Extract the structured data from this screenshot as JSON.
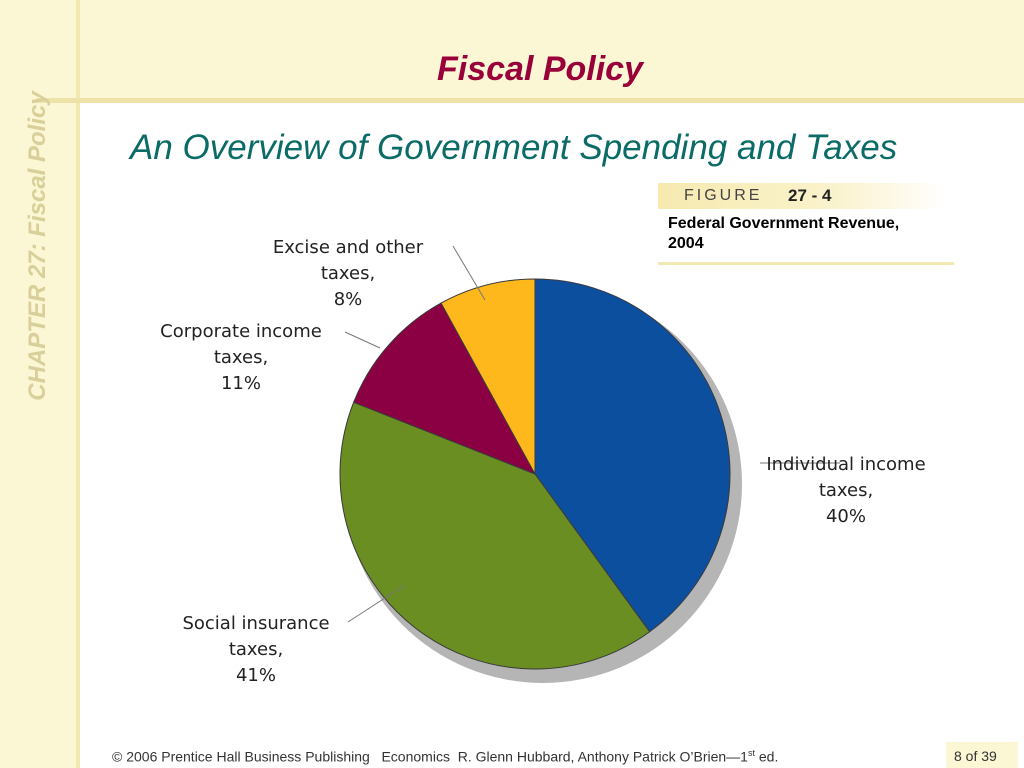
{
  "slide": {
    "title": "Fiscal Policy",
    "chapter_label": "CHAPTER 27:  Fiscal Policy",
    "subtitle": "An Overview of Government Spending and Taxes"
  },
  "figure": {
    "word": "FIGURE",
    "number": "27 - 4",
    "caption_line1": "Federal Government Revenue,",
    "caption_line2": "2004"
  },
  "chart_data": {
    "type": "pie",
    "title": "",
    "slices": [
      {
        "label_lines": [
          "Individual income",
          "taxes,",
          "40%"
        ],
        "value": 40,
        "color": "#0c4f9f"
      },
      {
        "label_lines": [
          "Social insurance",
          "taxes,",
          "41%"
        ],
        "value": 41,
        "color": "#6b8e23"
      },
      {
        "label_lines": [
          "Corporate income",
          "taxes,",
          "11%"
        ],
        "value": 11,
        "color": "#8b0042"
      },
      {
        "label_lines": [
          "Excise and other",
          "taxes,",
          "8%"
        ],
        "value": 8,
        "color": "#ffb81c"
      }
    ],
    "legend": "none",
    "start": "top, clockwise"
  },
  "footer": {
    "copyright": "© 2006 Prentice Hall Business Publishing",
    "book": "Economics",
    "authors_pre": "R. Glenn Hubbard, Anthony Patrick O’Brien—1",
    "authors_sup": "st",
    "authors_post": " ed.",
    "page": "8 of 39"
  },
  "colors": {
    "title": "#99003a",
    "subtitle": "#0a6b67",
    "band": "#fbf6d3"
  }
}
